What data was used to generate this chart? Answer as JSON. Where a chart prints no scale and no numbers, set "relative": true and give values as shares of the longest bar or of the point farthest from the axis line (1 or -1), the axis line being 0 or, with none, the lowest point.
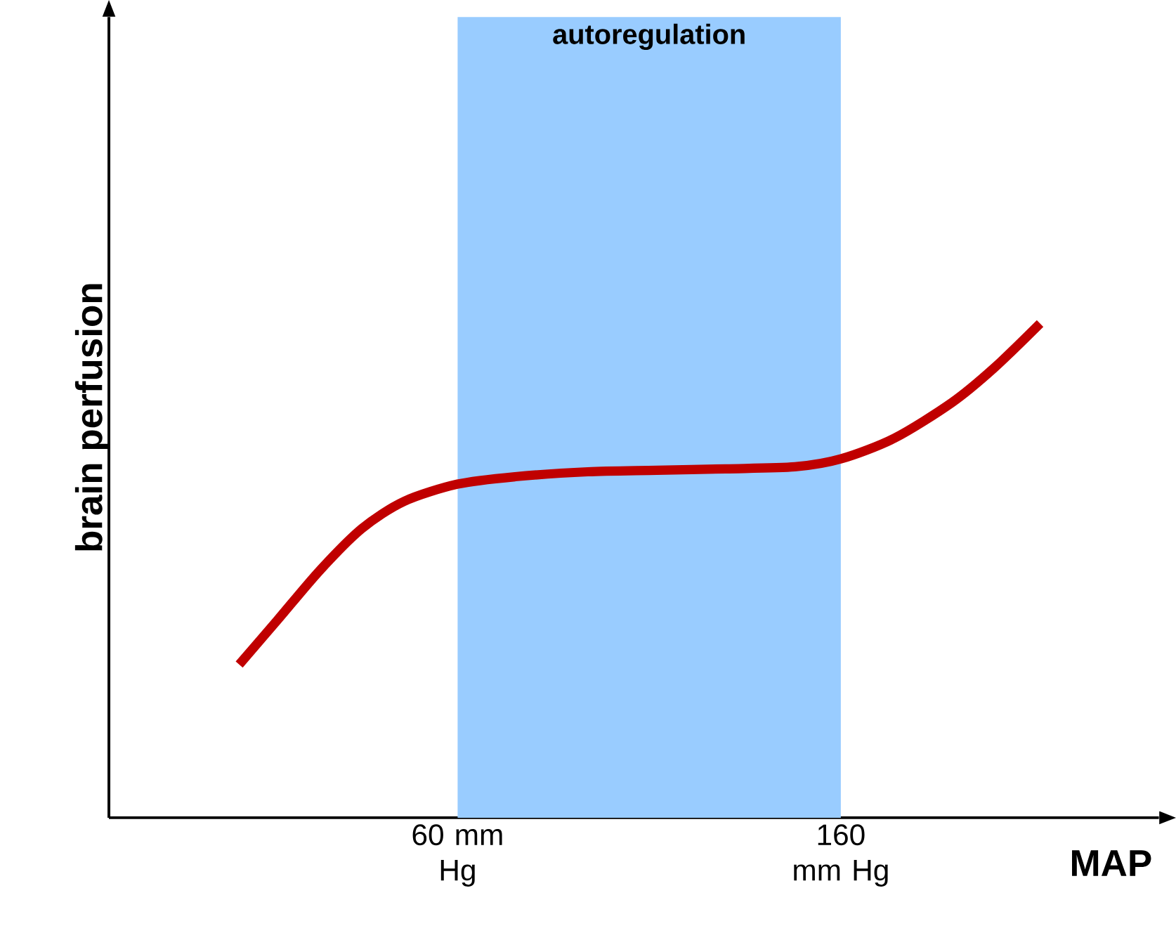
{
  "chart_data": {
    "type": "line",
    "relative": true,
    "xlabel": "MAP",
    "ylabel": "brain perfusion",
    "xlim": [
      -31,
      243
    ],
    "xticks": [
      {
        "value": 60,
        "label": "60 mm Hg"
      },
      {
        "value": 160,
        "label": "160 mm Hg"
      }
    ],
    "bands": [
      {
        "axis": "x",
        "from": 60,
        "to": 160,
        "label": "autoregulation",
        "color": "#99ccff"
      }
    ],
    "series": [
      {
        "color": "#c00000",
        "x": [
          3,
          13,
          24,
          35,
          46,
          60,
          75,
          94,
          112,
          130,
          148,
          160,
          174,
          189,
          200,
          212
        ],
        "values": [
          0.31,
          0.4,
          0.5,
          0.585,
          0.64,
          0.675,
          0.69,
          0.7,
          0.703,
          0.706,
          0.71,
          0.726,
          0.768,
          0.84,
          0.91,
          1.0
        ]
      }
    ]
  }
}
